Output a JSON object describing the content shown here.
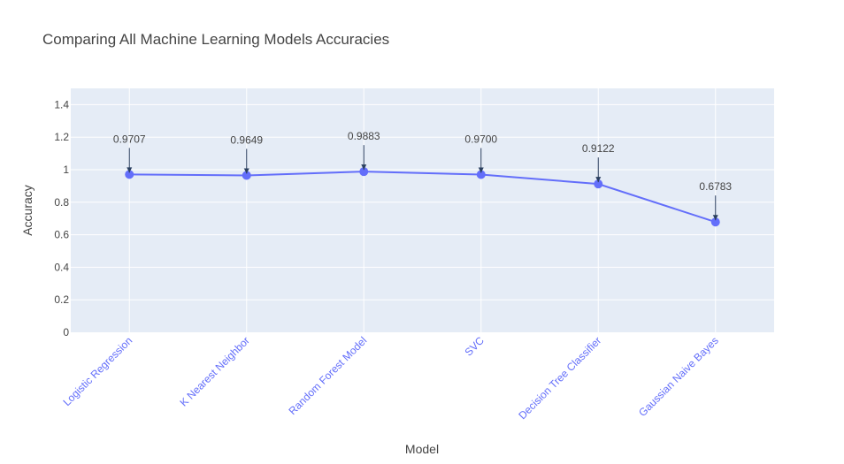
{
  "chart_data": {
    "type": "line",
    "title": "Comparing All Machine Learning Models Accuracies",
    "xlabel": "Model",
    "ylabel": "Accuracy",
    "ylim": [
      0,
      1.5
    ],
    "yticks": [
      0,
      0.2,
      0.4,
      0.6,
      0.8,
      1,
      1.2,
      1.4
    ],
    "ytick_labels": [
      "0",
      "0.2",
      "0.4",
      "0.6",
      "0.8",
      "1",
      "1.2",
      "1.4"
    ],
    "categories": [
      "Logistic Regression",
      "K Nearest Neighbor",
      "Random Forest Model",
      "SVC",
      "Decision Tree Classifier",
      "Gaussian Naive Bayes"
    ],
    "values": [
      0.9707,
      0.9649,
      0.9883,
      0.97,
      0.9122,
      0.6783
    ],
    "annotations": [
      "0.9707",
      "0.9649",
      "0.9883",
      "0.9700",
      "0.9122",
      "0.6783"
    ],
    "grid": true,
    "colors": {
      "line": "#636efa",
      "plot_bg": "#e5ecf6",
      "grid": "#ffffff",
      "xtick": "#636efa",
      "annotation_arrow": "#2a3f5f"
    }
  }
}
